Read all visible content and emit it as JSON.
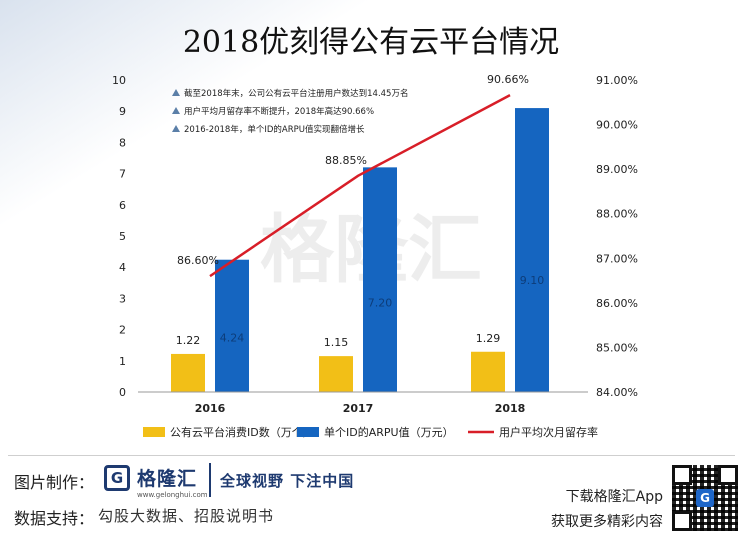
{
  "chart_data": {
    "type": "bar",
    "title": "2018优刻得公有云平台情况",
    "categories": [
      "2016",
      "2017",
      "2018"
    ],
    "series": [
      {
        "name": "公有云平台消费ID数（万个）",
        "kind": "bar",
        "axis": "left",
        "color": "#f2bf17",
        "values": [
          1.22,
          1.15,
          1.29
        ],
        "labels": [
          "1.22",
          "1.15",
          "1.29"
        ]
      },
      {
        "name": "单个ID的ARPU值（万元）",
        "kind": "bar",
        "axis": "left",
        "color": "#1565c0",
        "values": [
          4.24,
          7.2,
          9.1
        ],
        "labels": [
          "4.24",
          "7.20",
          "9.10"
        ]
      },
      {
        "name": "用户平均次月留存率",
        "kind": "line",
        "axis": "right",
        "color": "#d81e28",
        "values": [
          86.6,
          88.85,
          90.66
        ],
        "labels": [
          "86.60%",
          "88.85%",
          "90.66%"
        ]
      }
    ],
    "left_axis": {
      "min": 0,
      "max": 10,
      "ticks": [
        "0",
        "1",
        "2",
        "3",
        "4",
        "5",
        "6",
        "7",
        "8",
        "9",
        "10"
      ]
    },
    "right_axis": {
      "min": 84,
      "max": 91,
      "ticks": [
        "84.00%",
        "85.00%",
        "86.00%",
        "87.00%",
        "88.00%",
        "89.00%",
        "90.00%",
        "91.00%"
      ]
    },
    "annotations": [
      "截至2018年末，公司公有云平台注册用户数达到14.45万名",
      "用户平均月留存率不断提升，2018年高达90.66%",
      "2016-2018年，单个ID的ARPU值实现翻倍增长"
    ],
    "legend_position": "bottom",
    "grid": false,
    "watermark": "格隆汇"
  },
  "footer": {
    "credit_label": "图片制作：",
    "logo_mark": "G",
    "logo_name": "格隆汇",
    "logo_url": "www.gelonghui.com",
    "slogan": "全球视野 下注中国",
    "data_label": "数据支持：",
    "data_sources": "勾股大数据、招股说明书",
    "app_line1": "下载格隆汇App",
    "app_line2": "获取更多精彩内容",
    "qr_mark": "G"
  }
}
